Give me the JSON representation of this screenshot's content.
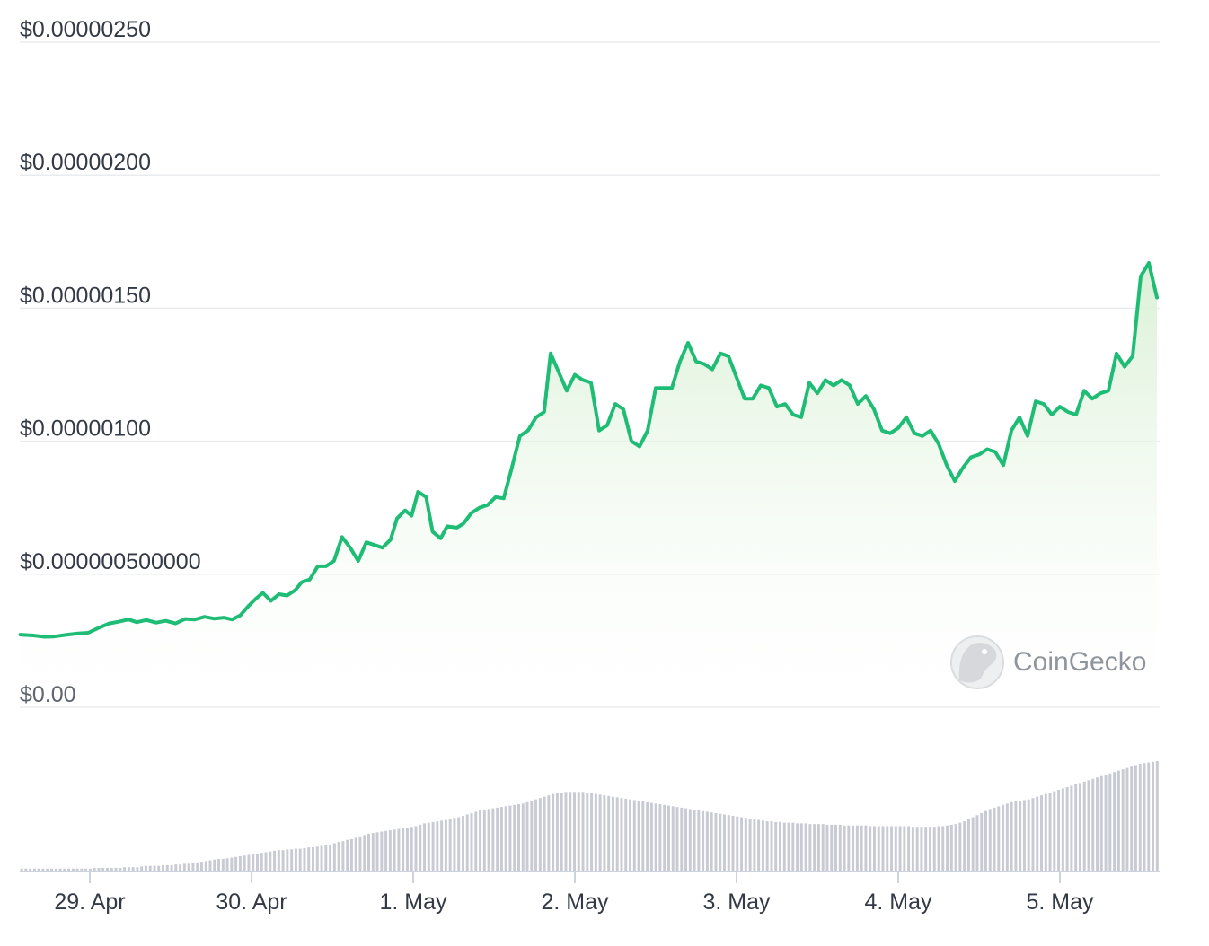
{
  "chart_data": {
    "type": "area",
    "title": "",
    "xlabel": "",
    "ylabel": "",
    "ylim": [
      0,
      2.5e-06
    ],
    "y_ticks": [
      {
        "value": 2.5e-06,
        "label": "$0.00000250"
      },
      {
        "value": 2e-06,
        "label": "$0.00000200"
      },
      {
        "value": 1.5e-06,
        "label": "$0.00000150"
      },
      {
        "value": 1e-06,
        "label": "$0.00000100"
      },
      {
        "value": 5e-07,
        "label": "$0.000000500000"
      },
      {
        "value": 0,
        "label": "$0.00"
      }
    ],
    "x_range": [
      -0.43,
      6.6
    ],
    "x_ticks": [
      {
        "value": 0,
        "label": "29. Apr"
      },
      {
        "value": 1,
        "label": "30. Apr"
      },
      {
        "value": 2,
        "label": "1. May"
      },
      {
        "value": 3,
        "label": "2. May"
      },
      {
        "value": 4,
        "label": "3. May"
      },
      {
        "value": 5,
        "label": "4. May"
      },
      {
        "value": 6,
        "label": "5. May"
      }
    ],
    "grid": true,
    "legend": "none",
    "colors": {
      "line": "#1fbc76",
      "fill_top": "#d8f0d4",
      "volume": "#c9cbd4",
      "grid": "#e9ebee"
    },
    "price_series": {
      "name": "",
      "points": [
        [
          -0.43,
          2.73e-07
        ],
        [
          -0.35,
          2.7e-07
        ],
        [
          -0.28,
          2.65e-07
        ],
        [
          -0.22,
          2.66e-07
        ],
        [
          -0.15,
          2.72e-07
        ],
        [
          -0.08,
          2.77e-07
        ],
        [
          -0.01,
          2.8e-07
        ],
        [
          0.06,
          3e-07
        ],
        [
          0.12,
          3.15e-07
        ],
        [
          0.18,
          3.22e-07
        ],
        [
          0.24,
          3.3e-07
        ],
        [
          0.29,
          3.2e-07
        ],
        [
          0.35,
          3.28e-07
        ],
        [
          0.41,
          3.18e-07
        ],
        [
          0.47,
          3.25e-07
        ],
        [
          0.53,
          3.15e-07
        ],
        [
          0.59,
          3.32e-07
        ],
        [
          0.65,
          3.3e-07
        ],
        [
          0.71,
          3.4e-07
        ],
        [
          0.77,
          3.33e-07
        ],
        [
          0.83,
          3.37e-07
        ],
        [
          0.88,
          3.3e-07
        ],
        [
          0.93,
          3.45e-07
        ],
        [
          0.98,
          3.8e-07
        ],
        [
          1.03,
          4.1e-07
        ],
        [
          1.07,
          4.3e-07
        ],
        [
          1.12,
          4e-07
        ],
        [
          1.17,
          4.25e-07
        ],
        [
          1.22,
          4.2e-07
        ],
        [
          1.27,
          4.4e-07
        ],
        [
          1.31,
          4.7e-07
        ],
        [
          1.36,
          4.8e-07
        ],
        [
          1.41,
          5.3e-07
        ],
        [
          1.46,
          5.3e-07
        ],
        [
          1.51,
          5.5e-07
        ],
        [
          1.56,
          6.4e-07
        ],
        [
          1.61,
          6e-07
        ],
        [
          1.66,
          5.5e-07
        ],
        [
          1.71,
          6.2e-07
        ],
        [
          1.76,
          6.1e-07
        ],
        [
          1.81,
          6e-07
        ],
        [
          1.86,
          6.3e-07
        ],
        [
          1.9,
          7.1e-07
        ],
        [
          1.95,
          7.4e-07
        ],
        [
          1.99,
          7.2e-07
        ],
        [
          2.03,
          8.1e-07
        ],
        [
          2.08,
          7.9e-07
        ],
        [
          2.12,
          6.6e-07
        ],
        [
          2.17,
          6.35e-07
        ],
        [
          2.21,
          6.8e-07
        ],
        [
          2.27,
          6.75e-07
        ],
        [
          2.31,
          6.9e-07
        ],
        [
          2.36,
          7.3e-07
        ],
        [
          2.41,
          7.5e-07
        ],
        [
          2.46,
          7.6e-07
        ],
        [
          2.51,
          7.9e-07
        ],
        [
          2.56,
          7.85e-07
        ],
        [
          2.61,
          9e-07
        ],
        [
          2.66,
          1.02e-06
        ],
        [
          2.71,
          1.04e-06
        ],
        [
          2.76,
          1.09e-06
        ],
        [
          2.81,
          1.11e-06
        ],
        [
          2.85,
          1.33e-06
        ],
        [
          2.9,
          1.26e-06
        ],
        [
          2.95,
          1.19e-06
        ],
        [
          3.0,
          1.25e-06
        ],
        [
          3.05,
          1.23e-06
        ],
        [
          3.1,
          1.22e-06
        ],
        [
          3.15,
          1.04e-06
        ],
        [
          3.2,
          1.06e-06
        ],
        [
          3.25,
          1.14e-06
        ],
        [
          3.3,
          1.12e-06
        ],
        [
          3.35,
          1e-06
        ],
        [
          3.4,
          9.8e-07
        ],
        [
          3.45,
          1.04e-06
        ],
        [
          3.5,
          1.2e-06
        ],
        [
          3.55,
          1.2e-06
        ],
        [
          3.6,
          1.2e-06
        ],
        [
          3.65,
          1.3e-06
        ],
        [
          3.7,
          1.37e-06
        ],
        [
          3.75,
          1.3e-06
        ],
        [
          3.8,
          1.29e-06
        ],
        [
          3.85,
          1.27e-06
        ],
        [
          3.9,
          1.33e-06
        ],
        [
          3.95,
          1.32e-06
        ],
        [
          4.0,
          1.24e-06
        ],
        [
          4.05,
          1.16e-06
        ],
        [
          4.1,
          1.16e-06
        ],
        [
          4.15,
          1.21e-06
        ],
        [
          4.2,
          1.2e-06
        ],
        [
          4.25,
          1.13e-06
        ],
        [
          4.3,
          1.14e-06
        ],
        [
          4.35,
          1.1e-06
        ],
        [
          4.4,
          1.09e-06
        ],
        [
          4.45,
          1.22e-06
        ],
        [
          4.5,
          1.18e-06
        ],
        [
          4.55,
          1.23e-06
        ],
        [
          4.6,
          1.21e-06
        ],
        [
          4.65,
          1.23e-06
        ],
        [
          4.7,
          1.21e-06
        ],
        [
          4.75,
          1.14e-06
        ],
        [
          4.8,
          1.17e-06
        ],
        [
          4.85,
          1.12e-06
        ],
        [
          4.9,
          1.04e-06
        ],
        [
          4.95,
          1.03e-06
        ],
        [
          5.0,
          1.05e-06
        ],
        [
          5.05,
          1.09e-06
        ],
        [
          5.1,
          1.03e-06
        ],
        [
          5.15,
          1.02e-06
        ],
        [
          5.2,
          1.04e-06
        ],
        [
          5.25,
          9.9e-07
        ],
        [
          5.3,
          9.1e-07
        ],
        [
          5.35,
          8.5e-07
        ],
        [
          5.4,
          9e-07
        ],
        [
          5.45,
          9.4e-07
        ],
        [
          5.5,
          9.5e-07
        ],
        [
          5.55,
          9.7e-07
        ],
        [
          5.6,
          9.6e-07
        ],
        [
          5.65,
          9.1e-07
        ],
        [
          5.7,
          1.04e-06
        ],
        [
          5.75,
          1.09e-06
        ],
        [
          5.8,
          1.02e-06
        ],
        [
          5.85,
          1.15e-06
        ],
        [
          5.9,
          1.14e-06
        ],
        [
          5.95,
          1.1e-06
        ],
        [
          6.0,
          1.13e-06
        ],
        [
          6.05,
          1.11e-06
        ],
        [
          6.1,
          1.1e-06
        ],
        [
          6.15,
          1.19e-06
        ],
        [
          6.2,
          1.16e-06
        ],
        [
          6.25,
          1.18e-06
        ],
        [
          6.3,
          1.19e-06
        ],
        [
          6.35,
          1.33e-06
        ],
        [
          6.4,
          1.28e-06
        ],
        [
          6.45,
          1.32e-06
        ],
        [
          6.5,
          1.62e-06
        ],
        [
          6.55,
          1.67e-06
        ],
        [
          6.6,
          1.54e-06
        ]
      ]
    },
    "volume_series": {
      "name": "",
      "values": [
        3,
        3,
        3,
        3,
        3,
        3,
        3,
        3,
        3,
        3,
        3,
        3,
        3,
        3,
        3,
        3,
        3,
        4,
        4,
        4,
        4,
        4,
        4,
        4,
        5,
        5,
        5,
        5,
        6,
        7,
        7,
        7,
        7,
        8,
        8,
        8,
        9,
        9,
        10,
        10,
        11,
        12,
        13,
        14,
        15,
        16,
        17,
        17,
        18,
        19,
        20,
        21,
        22,
        23,
        24,
        25,
        26,
        27,
        28,
        29,
        30,
        30,
        31,
        31,
        32,
        32,
        33,
        34,
        34,
        35,
        36,
        37,
        38,
        40,
        42,
        43,
        45,
        46,
        48,
        50,
        52,
        54,
        55,
        56,
        57,
        58,
        59,
        60,
        61,
        62,
        63,
        64,
        65,
        67,
        69,
        70,
        71,
        72,
        73,
        74,
        75,
        77,
        78,
        80,
        82,
        84,
        86,
        88,
        89,
        90,
        91,
        92,
        93,
        94,
        95,
        96,
        97,
        98,
        100,
        102,
        104,
        106,
        108,
        110,
        112,
        113,
        114,
        115,
        115,
        115,
        115,
        115,
        114,
        113,
        112,
        111,
        110,
        109,
        108,
        107,
        106,
        105,
        104,
        103,
        102,
        101,
        100,
        99,
        98,
        97,
        96,
        95,
        94,
        93,
        92,
        91,
        90,
        89,
        88,
        87,
        86,
        85,
        84,
        83,
        82,
        81,
        80,
        79,
        78,
        77,
        76,
        75,
        74,
        73,
        72,
        72,
        71,
        71,
        70,
        70,
        70,
        69,
        69,
        69,
        68,
        68,
        68,
        68,
        67,
        67,
        67,
        67,
        66,
        66,
        66,
        66,
        66,
        66,
        65,
        65,
        65,
        65,
        65,
        65,
        65,
        65,
        65,
        65,
        64,
        64,
        64,
        64,
        64,
        64,
        65,
        65,
        66,
        67,
        68,
        70,
        72,
        75,
        78,
        81,
        84,
        87,
        90,
        92,
        94,
        96,
        98,
        100,
        101,
        102,
        103,
        104,
        106,
        108,
        110,
        112,
        114,
        116,
        118,
        120,
        122,
        124,
        126,
        128,
        130,
        132,
        134,
        136,
        138,
        140,
        142,
        144,
        146,
        148,
        150,
        152,
        154,
        156,
        157,
        158,
        159,
        160
      ]
    }
  },
  "watermark": {
    "text": "CoinGecko",
    "icon": "coingecko-gecko-icon"
  }
}
